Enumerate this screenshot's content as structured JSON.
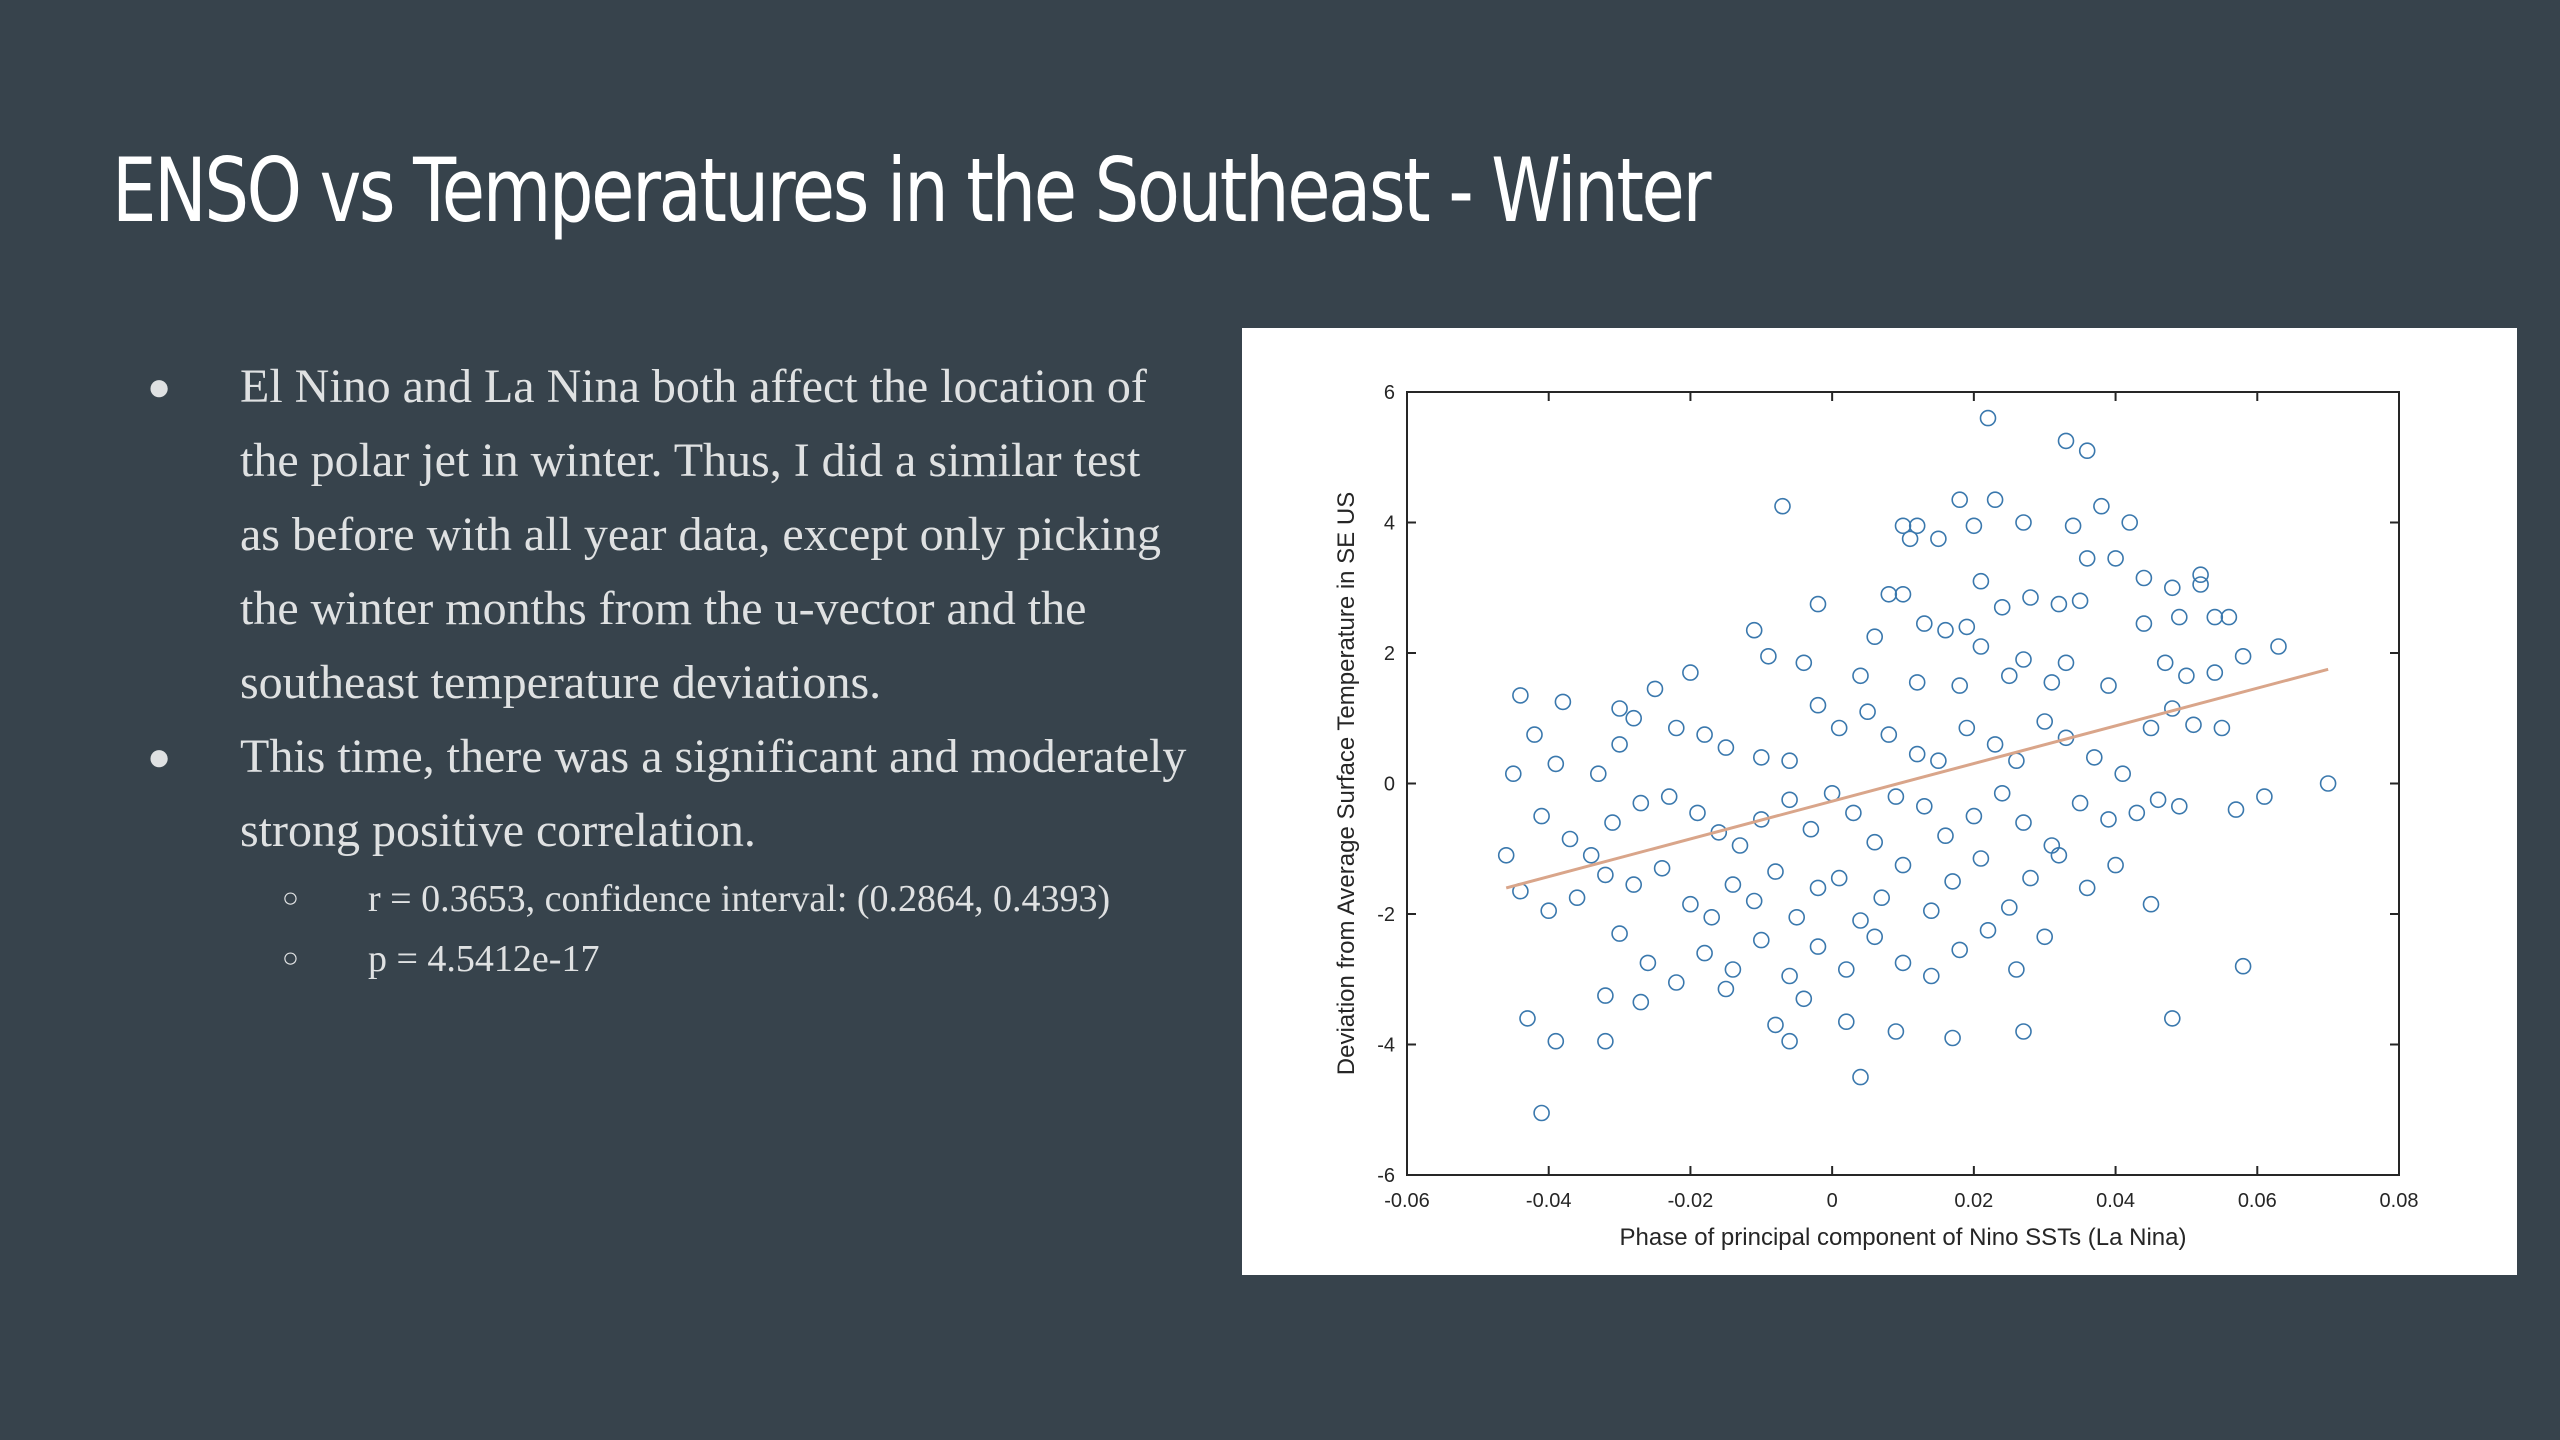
{
  "slide": {
    "title": "ENSO vs Temperatures in the Southeast - Winter",
    "bullets": [
      {
        "marker": "●",
        "text": "El Nino and La Nina both affect the location of the polar jet in winter. Thus, I did a similar test as before with all year data, except only picking the winter months from the u-vector and the southeast temperature deviations."
      },
      {
        "marker": "●",
        "text": "This time, there was a significant and moderately strong positive correlation."
      }
    ],
    "sub_bullets": [
      {
        "marker": "○",
        "text": "r = 0.3653, confidence interval: (0.2864, 0.4393)"
      },
      {
        "marker": "○",
        "text": "p = 4.5412e-17"
      }
    ]
  },
  "colors": {
    "background": "#37434c",
    "marker": "#3a78ad",
    "fit_line": "#d9a58a"
  },
  "chart_data": {
    "type": "scatter",
    "xlabel": "Phase of principal component of Nino SSTs (La Nina)",
    "ylabel": "Deviation from Average Surface Temperature in SE US",
    "xlim": [
      -0.06,
      0.08
    ],
    "ylim": [
      -6,
      6
    ],
    "xticks": [
      "-0.06",
      "-0.04",
      "-0.02",
      "0",
      "0.02",
      "0.04",
      "0.06",
      "0.08"
    ],
    "yticks": [
      "-6",
      "-4",
      "-2",
      "0",
      "2",
      "4",
      "6"
    ],
    "marker_style": "open-circle",
    "fit_line": {
      "x": [
        -0.046,
        0.07
      ],
      "y": [
        -1.6,
        1.75
      ]
    },
    "points": [
      [
        0.022,
        5.6
      ],
      [
        0.033,
        5.25
      ],
      [
        0.036,
        5.1
      ],
      [
        -0.007,
        4.25
      ],
      [
        0.018,
        4.35
      ],
      [
        0.023,
        4.35
      ],
      [
        0.038,
        4.25
      ],
      [
        0.042,
        4.0
      ],
      [
        0.01,
        3.95
      ],
      [
        0.012,
        3.95
      ],
      [
        0.02,
        3.95
      ],
      [
        0.027,
        4.0
      ],
      [
        0.034,
        3.95
      ],
      [
        0.011,
        3.75
      ],
      [
        0.015,
        3.75
      ],
      [
        0.021,
        3.1
      ],
      [
        0.036,
        3.45
      ],
      [
        0.04,
        3.45
      ],
      [
        0.044,
        3.15
      ],
      [
        0.048,
        3.0
      ],
      [
        0.052,
        3.2
      ],
      [
        0.052,
        3.05
      ],
      [
        -0.011,
        2.35
      ],
      [
        -0.002,
        2.75
      ],
      [
        0.008,
        2.9
      ],
      [
        0.01,
        2.9
      ],
      [
        0.013,
        2.45
      ],
      [
        0.019,
        2.4
      ],
      [
        0.024,
        2.7
      ],
      [
        0.028,
        2.85
      ],
      [
        0.032,
        2.75
      ],
      [
        0.035,
        2.8
      ],
      [
        0.044,
        2.45
      ],
      [
        0.049,
        2.55
      ],
      [
        0.054,
        2.55
      ],
      [
        0.056,
        2.55
      ],
      [
        0.006,
        2.25
      ],
      [
        0.016,
        2.35
      ],
      [
        0.021,
        2.1
      ],
      [
        0.027,
        1.9
      ],
      [
        0.033,
        1.85
      ],
      [
        0.047,
        1.85
      ],
      [
        0.058,
        1.95
      ],
      [
        0.063,
        2.1
      ],
      [
        -0.009,
        1.95
      ],
      [
        -0.004,
        1.85
      ],
      [
        0.004,
        1.65
      ],
      [
        0.012,
        1.55
      ],
      [
        0.018,
        1.5
      ],
      [
        0.025,
        1.65
      ],
      [
        0.031,
        1.55
      ],
      [
        0.039,
        1.5
      ],
      [
        0.05,
        1.65
      ],
      [
        0.054,
        1.7
      ],
      [
        -0.02,
        1.7
      ],
      [
        -0.025,
        1.45
      ],
      [
        -0.028,
        1.0
      ],
      [
        -0.03,
        1.15
      ],
      [
        -0.038,
        1.25
      ],
      [
        -0.044,
        1.35
      ],
      [
        -0.045,
        0.15
      ],
      [
        -0.042,
        0.75
      ],
      [
        -0.039,
        0.3
      ],
      [
        -0.033,
        0.15
      ],
      [
        -0.03,
        0.6
      ],
      [
        -0.022,
        0.85
      ],
      [
        -0.018,
        0.75
      ],
      [
        -0.015,
        0.55
      ],
      [
        -0.01,
        0.4
      ],
      [
        -0.006,
        0.35
      ],
      [
        -0.002,
        1.2
      ],
      [
        0.001,
        0.85
      ],
      [
        0.005,
        1.1
      ],
      [
        0.008,
        0.75
      ],
      [
        0.012,
        0.45
      ],
      [
        0.015,
        0.35
      ],
      [
        0.019,
        0.85
      ],
      [
        0.023,
        0.6
      ],
      [
        0.026,
        0.35
      ],
      [
        0.03,
        0.95
      ],
      [
        0.033,
        0.7
      ],
      [
        0.037,
        0.4
      ],
      [
        0.041,
        0.15
      ],
      [
        0.045,
        0.85
      ],
      [
        0.048,
        1.15
      ],
      [
        0.051,
        0.9
      ],
      [
        0.055,
        0.85
      ],
      [
        0.061,
        -0.2
      ],
      [
        0.07,
        0.0
      ],
      [
        0.057,
        -0.4
      ],
      [
        -0.041,
        -0.5
      ],
      [
        -0.037,
        -0.85
      ],
      [
        -0.034,
        -1.1
      ],
      [
        -0.031,
        -0.6
      ],
      [
        -0.027,
        -0.3
      ],
      [
        -0.023,
        -0.2
      ],
      [
        -0.019,
        -0.45
      ],
      [
        -0.016,
        -0.75
      ],
      [
        -0.013,
        -0.95
      ],
      [
        -0.01,
        -0.55
      ],
      [
        -0.006,
        -0.25
      ],
      [
        -0.003,
        -0.7
      ],
      [
        0.0,
        -0.15
      ],
      [
        0.003,
        -0.45
      ],
      [
        0.006,
        -0.9
      ],
      [
        0.009,
        -0.2
      ],
      [
        0.013,
        -0.35
      ],
      [
        0.016,
        -0.8
      ],
      [
        0.02,
        -0.5
      ],
      [
        0.024,
        -0.15
      ],
      [
        0.027,
        -0.6
      ],
      [
        0.031,
        -0.95
      ],
      [
        0.035,
        -0.3
      ],
      [
        0.039,
        -0.55
      ],
      [
        0.043,
        -0.45
      ],
      [
        0.046,
        -0.25
      ],
      [
        0.049,
        -0.35
      ],
      [
        -0.046,
        -1.1
      ],
      [
        -0.044,
        -1.65
      ],
      [
        -0.04,
        -1.95
      ],
      [
        -0.036,
        -1.75
      ],
      [
        -0.032,
        -1.4
      ],
      [
        -0.028,
        -1.55
      ],
      [
        -0.024,
        -1.3
      ],
      [
        -0.02,
        -1.85
      ],
      [
        -0.017,
        -2.05
      ],
      [
        -0.014,
        -1.55
      ],
      [
        -0.011,
        -1.8
      ],
      [
        -0.008,
        -1.35
      ],
      [
        -0.005,
        -2.05
      ],
      [
        -0.002,
        -1.6
      ],
      [
        0.001,
        -1.45
      ],
      [
        0.004,
        -2.1
      ],
      [
        0.007,
        -1.75
      ],
      [
        0.01,
        -1.25
      ],
      [
        0.014,
        -1.95
      ],
      [
        0.017,
        -1.5
      ],
      [
        0.021,
        -1.15
      ],
      [
        0.025,
        -1.9
      ],
      [
        0.028,
        -1.45
      ],
      [
        0.032,
        -1.1
      ],
      [
        0.036,
        -1.6
      ],
      [
        0.04,
        -1.25
      ],
      [
        0.045,
        -1.85
      ],
      [
        -0.03,
        -2.3
      ],
      [
        -0.026,
        -2.75
      ],
      [
        -0.022,
        -3.05
      ],
      [
        -0.018,
        -2.6
      ],
      [
        -0.014,
        -2.85
      ],
      [
        -0.01,
        -2.4
      ],
      [
        -0.006,
        -2.95
      ],
      [
        -0.002,
        -2.5
      ],
      [
        0.002,
        -2.85
      ],
      [
        0.006,
        -2.35
      ],
      [
        0.01,
        -2.75
      ],
      [
        0.014,
        -2.95
      ],
      [
        0.018,
        -2.55
      ],
      [
        0.022,
        -2.25
      ],
      [
        0.026,
        -2.85
      ],
      [
        0.03,
        -2.35
      ],
      [
        0.058,
        -2.8
      ],
      [
        -0.032,
        -3.25
      ],
      [
        -0.027,
        -3.35
      ],
      [
        -0.015,
        -3.15
      ],
      [
        -0.008,
        -3.7
      ],
      [
        -0.004,
        -3.3
      ],
      [
        0.002,
        -3.65
      ],
      [
        0.009,
        -3.8
      ],
      [
        0.017,
        -3.9
      ],
      [
        0.027,
        -3.8
      ],
      [
        -0.043,
        -3.6
      ],
      [
        -0.039,
        -3.95
      ],
      [
        -0.032,
        -3.95
      ],
      [
        -0.006,
        -3.95
      ],
      [
        0.048,
        -3.6
      ],
      [
        0.004,
        -4.5
      ],
      [
        -0.041,
        -5.05
      ]
    ]
  }
}
